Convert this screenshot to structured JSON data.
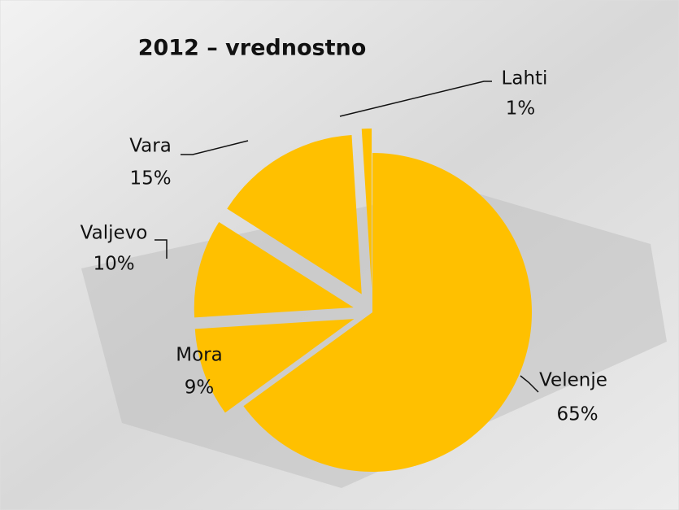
{
  "chart_data": {
    "type": "pie",
    "title": "2012 – vrednostno",
    "categories": [
      "Velenje",
      "Mora",
      "Valjevo",
      "Vara",
      "Lahti"
    ],
    "values": [
      65,
      9,
      10,
      15,
      1
    ],
    "value_labels": [
      "65%",
      "9%",
      "10%",
      "15%",
      "1%"
    ],
    "color": "#FFC000"
  }
}
